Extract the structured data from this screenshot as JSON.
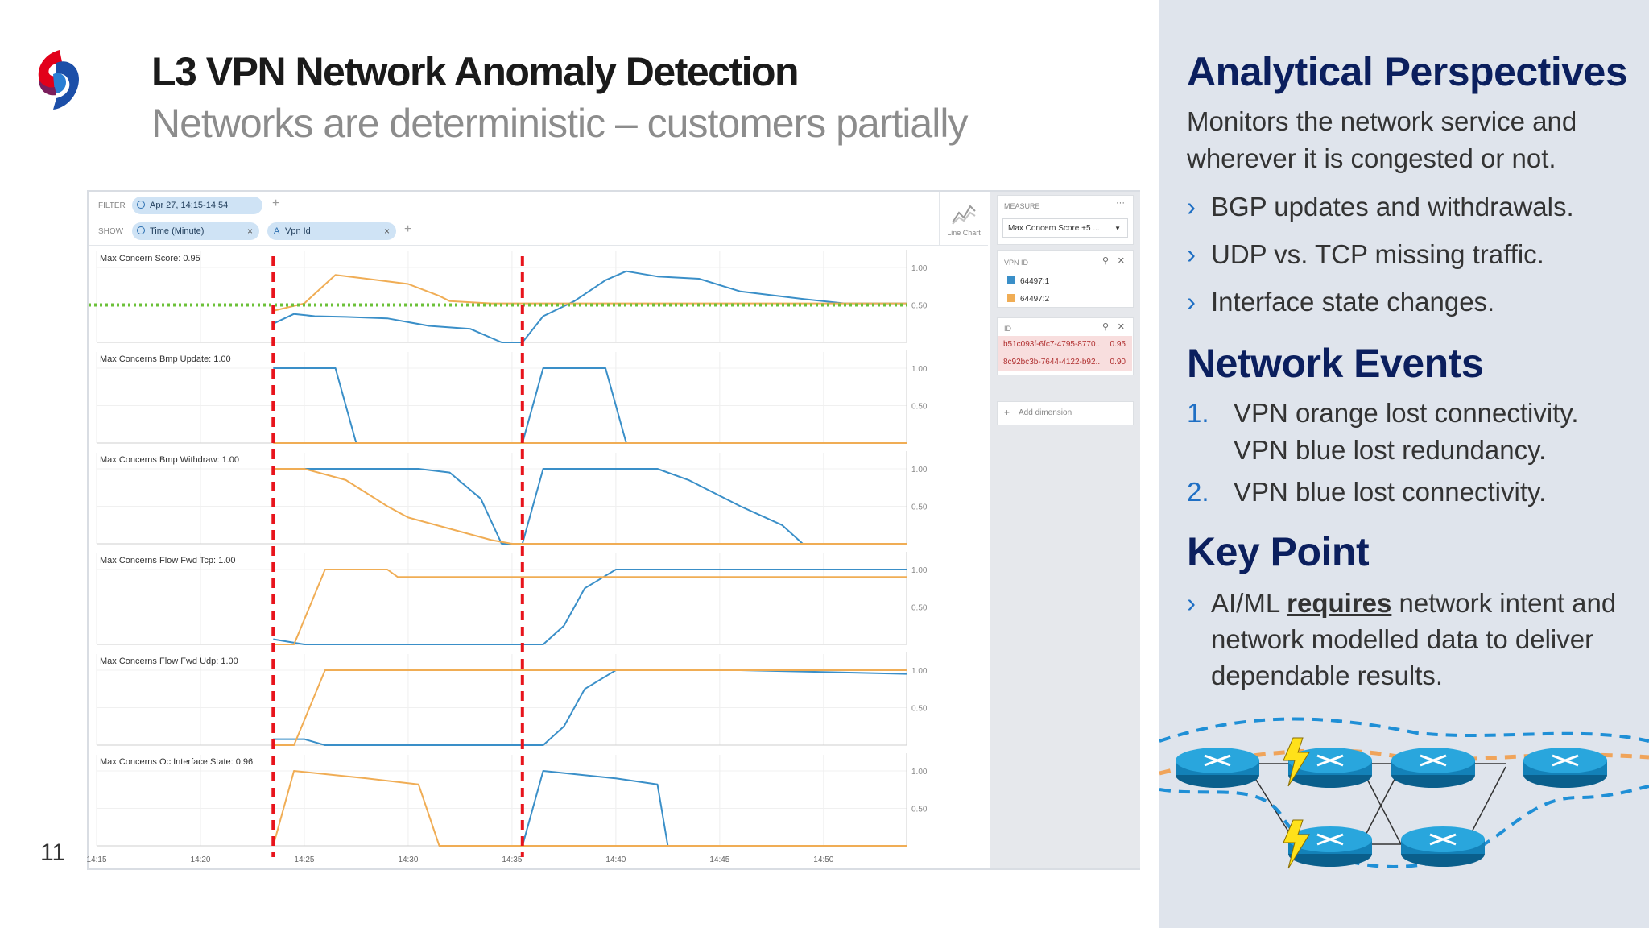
{
  "slide": {
    "title": "L3 VPN Network Anomaly Detection",
    "subtitle": "Networks are deterministic – customers partially",
    "page_number": "11"
  },
  "dashboard": {
    "filter_label": "FILTER",
    "filter_value": "Apr 27, 14:15-14:54",
    "show_label": "SHOW",
    "show_items": [
      "Time (Minute)",
      "Vpn Id"
    ],
    "chart_type_label": "Line Chart",
    "measure_label": "MEASURE",
    "measure_value": "Max Concern Score +5 ...",
    "vpn_id_label": "VPN ID",
    "vpn_ids": [
      "64497:1",
      "64497:2"
    ],
    "id_label": "ID",
    "ids": [
      {
        "id": "b51c093f-6fc7-4795-8770...",
        "value": "0.95"
      },
      {
        "id": "8c92bc3b-7644-4122-b92...",
        "value": "0.90"
      }
    ],
    "add_dimension": "Add dimension"
  },
  "sidebar": {
    "analytical": {
      "heading": "Analytical Perspectives",
      "intro": "Monitors the network service and wherever it is congested or not.",
      "bullets": [
        "BGP updates and withdrawals.",
        "UDP vs. TCP missing traffic.",
        "Interface state changes."
      ]
    },
    "events": {
      "heading": "Network Events",
      "items": [
        {
          "num": "1.",
          "line1": "VPN orange lost connectivity.",
          "line2": "VPN blue lost redundancy."
        },
        {
          "num": "2.",
          "line1": "VPN blue lost connectivity.",
          "line2": ""
        }
      ]
    },
    "key_point": {
      "heading": "Key Point",
      "prefix": "AI/ML ",
      "emphasis": "requires",
      "suffix": " network intent and network modelled data to deliver dependable results."
    }
  },
  "colors": {
    "series_blue": "#3a8fc8",
    "series_orange": "#f0ad55",
    "event_marker": "#e8141c",
    "threshold": "#6cc13a",
    "heading": "#0b1f5e",
    "accent": "#1f6fc4"
  },
  "chart_data": {
    "type": "line",
    "x_ticks": [
      "14:15",
      "14:20",
      "14:25",
      "14:30",
      "14:35",
      "14:40",
      "14:45",
      "14:50"
    ],
    "x_range_minutes": [
      0,
      39
    ],
    "y_ticks": [
      "1.00",
      "0.50"
    ],
    "event_markers_minute": [
      8.5,
      20.5
    ],
    "threshold_panel": 0,
    "threshold_value": 0.5,
    "panels": [
      {
        "title": "Max Concern Score: 0.95",
        "series": [
          {
            "name": "64497:1",
            "color": "blue",
            "points": [
              [
                8.5,
                0.25
              ],
              [
                9.5,
                0.38
              ],
              [
                10.5,
                0.35
              ],
              [
                12,
                0.34
              ],
              [
                14,
                0.32
              ],
              [
                16,
                0.22
              ],
              [
                18,
                0.18
              ],
              [
                19.5,
                0.0
              ],
              [
                20.5,
                0.0
              ],
              [
                21.5,
                0.35
              ],
              [
                23,
                0.55
              ],
              [
                24.5,
                0.83
              ],
              [
                25.5,
                0.95
              ],
              [
                27,
                0.88
              ],
              [
                29,
                0.85
              ],
              [
                31,
                0.68
              ],
              [
                34,
                0.58
              ],
              [
                36,
                0.52
              ],
              [
                39,
                0.52
              ]
            ]
          },
          {
            "name": "64497:2",
            "color": "orange",
            "points": [
              [
                8.5,
                0.42
              ],
              [
                10,
                0.52
              ],
              [
                11.5,
                0.9
              ],
              [
                13,
                0.85
              ],
              [
                15,
                0.78
              ],
              [
                16.5,
                0.62
              ],
              [
                17,
                0.55
              ],
              [
                19,
                0.52
              ],
              [
                21,
                0.52
              ],
              [
                39,
                0.52
              ]
            ]
          }
        ]
      },
      {
        "title": "Max Concerns Bmp Update: 1.00",
        "series": [
          {
            "name": "64497:1",
            "color": "blue",
            "points": [
              [
                8.5,
                1.0
              ],
              [
                11.5,
                1.0
              ],
              [
                12.5,
                0.0
              ],
              [
                20.5,
                0.0
              ],
              [
                21.5,
                1.0
              ],
              [
                24.5,
                1.0
              ],
              [
                25.5,
                0.0
              ],
              [
                39,
                0.0
              ]
            ]
          },
          {
            "name": "64497:2",
            "color": "orange",
            "points": [
              [
                8.5,
                0.0
              ],
              [
                39,
                0.0
              ]
            ]
          }
        ]
      },
      {
        "title": "Max Concerns Bmp Withdraw: 1.00",
        "series": [
          {
            "name": "64497:1",
            "color": "blue",
            "points": [
              [
                8.5,
                1.0
              ],
              [
                15.5,
                1.0
              ],
              [
                17,
                0.95
              ],
              [
                18.5,
                0.6
              ],
              [
                19.5,
                0.0
              ],
              [
                20.5,
                0.0
              ],
              [
                21.5,
                1.0
              ],
              [
                27,
                1.0
              ],
              [
                28.5,
                0.85
              ],
              [
                31,
                0.5
              ],
              [
                33,
                0.25
              ],
              [
                34,
                0.0
              ],
              [
                39,
                0.0
              ]
            ]
          },
          {
            "name": "64497:2",
            "color": "orange",
            "points": [
              [
                8.5,
                1.0
              ],
              [
                10,
                1.0
              ],
              [
                12,
                0.85
              ],
              [
                14,
                0.5
              ],
              [
                15,
                0.35
              ],
              [
                17,
                0.2
              ],
              [
                19,
                0.05
              ],
              [
                20,
                0.0
              ],
              [
                39,
                0.0
              ]
            ]
          }
        ]
      },
      {
        "title": "Max Concerns Flow Fwd Tcp: 1.00",
        "series": [
          {
            "name": "64497:1",
            "color": "blue",
            "points": [
              [
                8.5,
                0.07
              ],
              [
                10,
                0.0
              ],
              [
                21.5,
                0.0
              ],
              [
                22.5,
                0.25
              ],
              [
                23.5,
                0.75
              ],
              [
                25,
                1.0
              ],
              [
                39,
                1.0
              ]
            ]
          },
          {
            "name": "64497:2",
            "color": "orange",
            "points": [
              [
                8.5,
                0.0
              ],
              [
                9.5,
                0.0
              ],
              [
                11,
                1.0
              ],
              [
                14,
                1.0
              ],
              [
                14.5,
                0.9
              ],
              [
                20,
                0.9
              ],
              [
                39,
                0.9
              ]
            ]
          }
        ]
      },
      {
        "title": "Max Concerns Flow Fwd Udp: 1.00",
        "series": [
          {
            "name": "64497:1",
            "color": "blue",
            "points": [
              [
                8.5,
                0.08
              ],
              [
                10,
                0.08
              ],
              [
                11,
                0.0
              ],
              [
                21.5,
                0.0
              ],
              [
                22.5,
                0.25
              ],
              [
                23.5,
                0.75
              ],
              [
                25,
                1.0
              ],
              [
                31,
                1.0
              ],
              [
                39,
                0.95
              ]
            ]
          },
          {
            "name": "64497:2",
            "color": "orange",
            "points": [
              [
                8.5,
                0.0
              ],
              [
                9.5,
                0.0
              ],
              [
                11,
                1.0
              ],
              [
                20,
                1.0
              ],
              [
                39,
                1.0
              ]
            ]
          }
        ]
      },
      {
        "title": "Max Concerns Oc Interface State: 0.96",
        "series": [
          {
            "name": "64497:1",
            "color": "blue",
            "points": [
              [
                20.5,
                0.0
              ],
              [
                21.5,
                1.0
              ],
              [
                25,
                0.9
              ],
              [
                27,
                0.82
              ],
              [
                27.5,
                0.0
              ],
              [
                39,
                0.0
              ]
            ]
          },
          {
            "name": "64497:2",
            "color": "orange",
            "points": [
              [
                8.5,
                0.0
              ],
              [
                9.5,
                1.0
              ],
              [
                13,
                0.9
              ],
              [
                15.5,
                0.82
              ],
              [
                16.5,
                0.0
              ],
              [
                39,
                0.0
              ]
            ]
          }
        ]
      }
    ]
  }
}
